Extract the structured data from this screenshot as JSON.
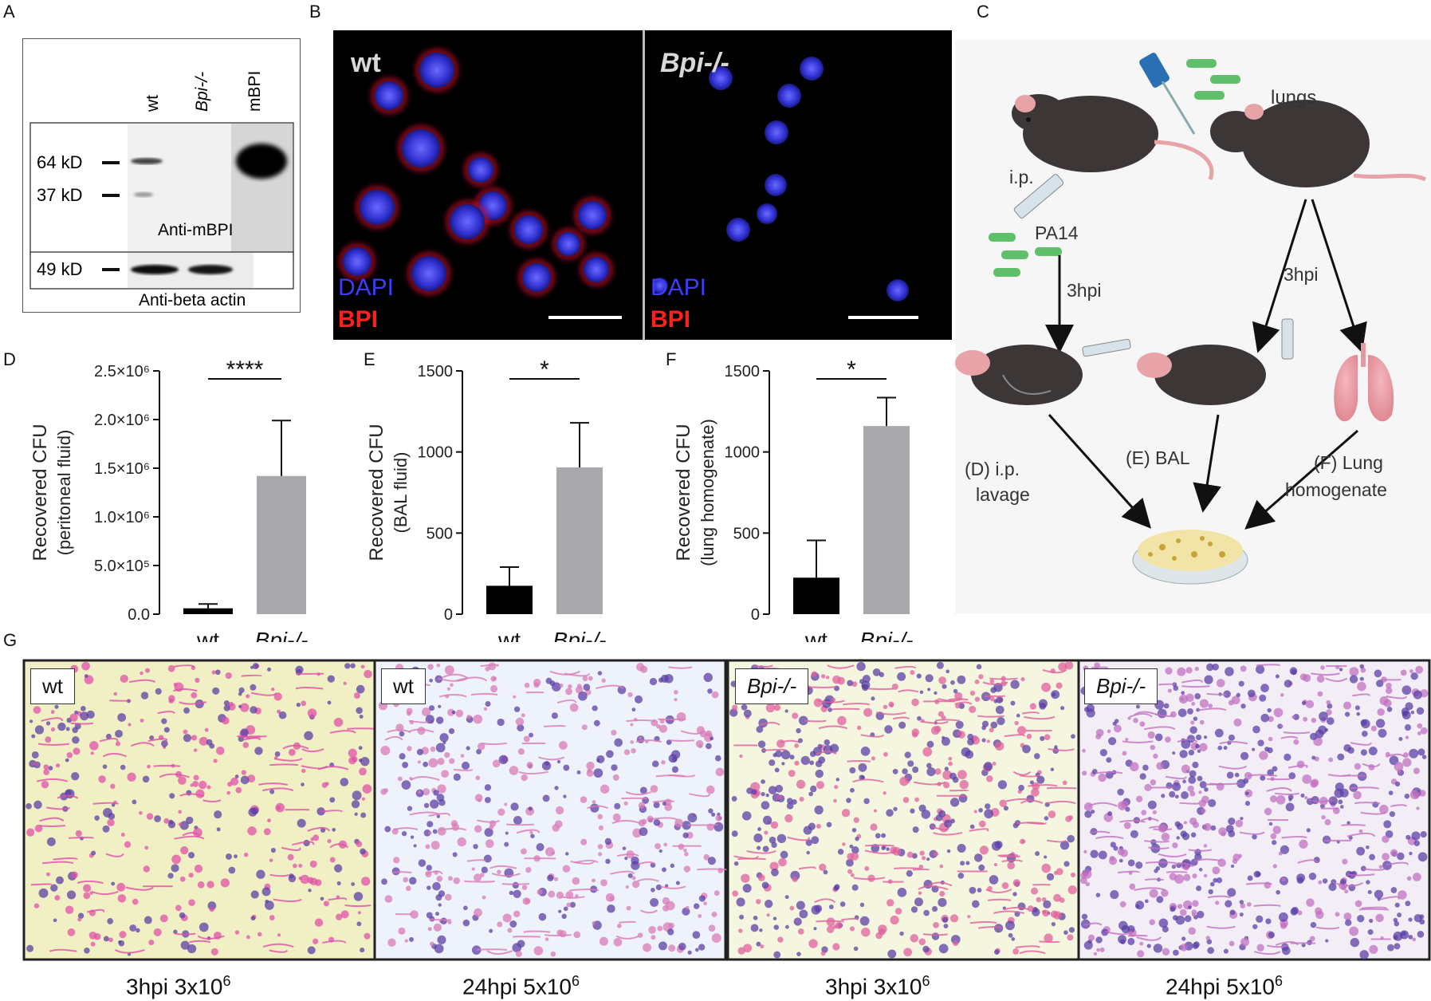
{
  "panel_letters": [
    "A",
    "B",
    "C",
    "D",
    "E",
    "F",
    "G"
  ],
  "panelA": {
    "lanes": [
      "wt",
      "Bpi-/-",
      "mBPI"
    ],
    "markers_top": [
      "64 kD",
      "37 kD"
    ],
    "blot_top_label": "Anti-mBPI",
    "marker_bottom": "49 kD",
    "blot_bottom_label": "Anti-beta actin"
  },
  "panelB": {
    "left_title": "wt",
    "right_title": "Bpi-/-",
    "dapi": "DAPI",
    "bpi": "BPI"
  },
  "panelC": {
    "lungs": "lungs",
    "ip": "i.p.",
    "pa14": "PA14",
    "hpi_left": "3hpi",
    "hpi_right": "3hpi",
    "d_label": [
      "(D) i.p.",
      "lavage"
    ],
    "e_label": "(E) BAL",
    "f_label": [
      "(F) Lung",
      "homogenate"
    ]
  },
  "chart_data": [
    {
      "panel": "D",
      "type": "bar",
      "categories": [
        "wt",
        "Bpi-/-"
      ],
      "values": [
        60000,
        1420000
      ],
      "errors": [
        45000,
        570000
      ],
      "ylabel": [
        "Recovered CFU",
        "(peritoneal fluid)"
      ],
      "yticks": [
        "0.0",
        "5.0×10⁵",
        "1.0×10⁶",
        "1.5×10⁶",
        "2.0×10⁶",
        "2.5×10⁶"
      ],
      "ylim": [
        0,
        2500000
      ],
      "significance": "****",
      "colors": [
        "#000000",
        "#a9a9ad"
      ]
    },
    {
      "panel": "E",
      "type": "bar",
      "categories": [
        "wt",
        "Bpi-/-"
      ],
      "values": [
        175,
        905
      ],
      "errors": [
        115,
        275
      ],
      "ylabel": [
        "Recovered CFU",
        "(BAL fluid)"
      ],
      "yticks": [
        "0",
        "500",
        "1000",
        "1500"
      ],
      "ylim": [
        0,
        1500
      ],
      "significance": "*",
      "colors": [
        "#000000",
        "#a9a9ad"
      ]
    },
    {
      "panel": "F",
      "type": "bar",
      "categories": [
        "wt",
        "Bpi-/-"
      ],
      "values": [
        225,
        1160
      ],
      "errors": [
        230,
        175
      ],
      "ylabel": [
        "Recovered CFU",
        "(lung homogenate)"
      ],
      "yticks": [
        "0",
        "500",
        "1000",
        "1500"
      ],
      "ylim": [
        0,
        1500
      ],
      "significance": "*",
      "colors": [
        "#000000",
        "#a9a9ad"
      ]
    }
  ],
  "panelG": {
    "tiles": [
      {
        "tag": "wt",
        "caption_base": "3hpi 3x10",
        "caption_exp": "6"
      },
      {
        "tag": "wt",
        "caption_base": "24hpi 5x10",
        "caption_exp": "6"
      },
      {
        "tag": "Bpi-/-",
        "caption_base": "3hpi 3x10",
        "caption_exp": "6"
      },
      {
        "tag": "Bpi-/-",
        "caption_base": "24hpi 5x10",
        "caption_exp": "6"
      }
    ]
  }
}
